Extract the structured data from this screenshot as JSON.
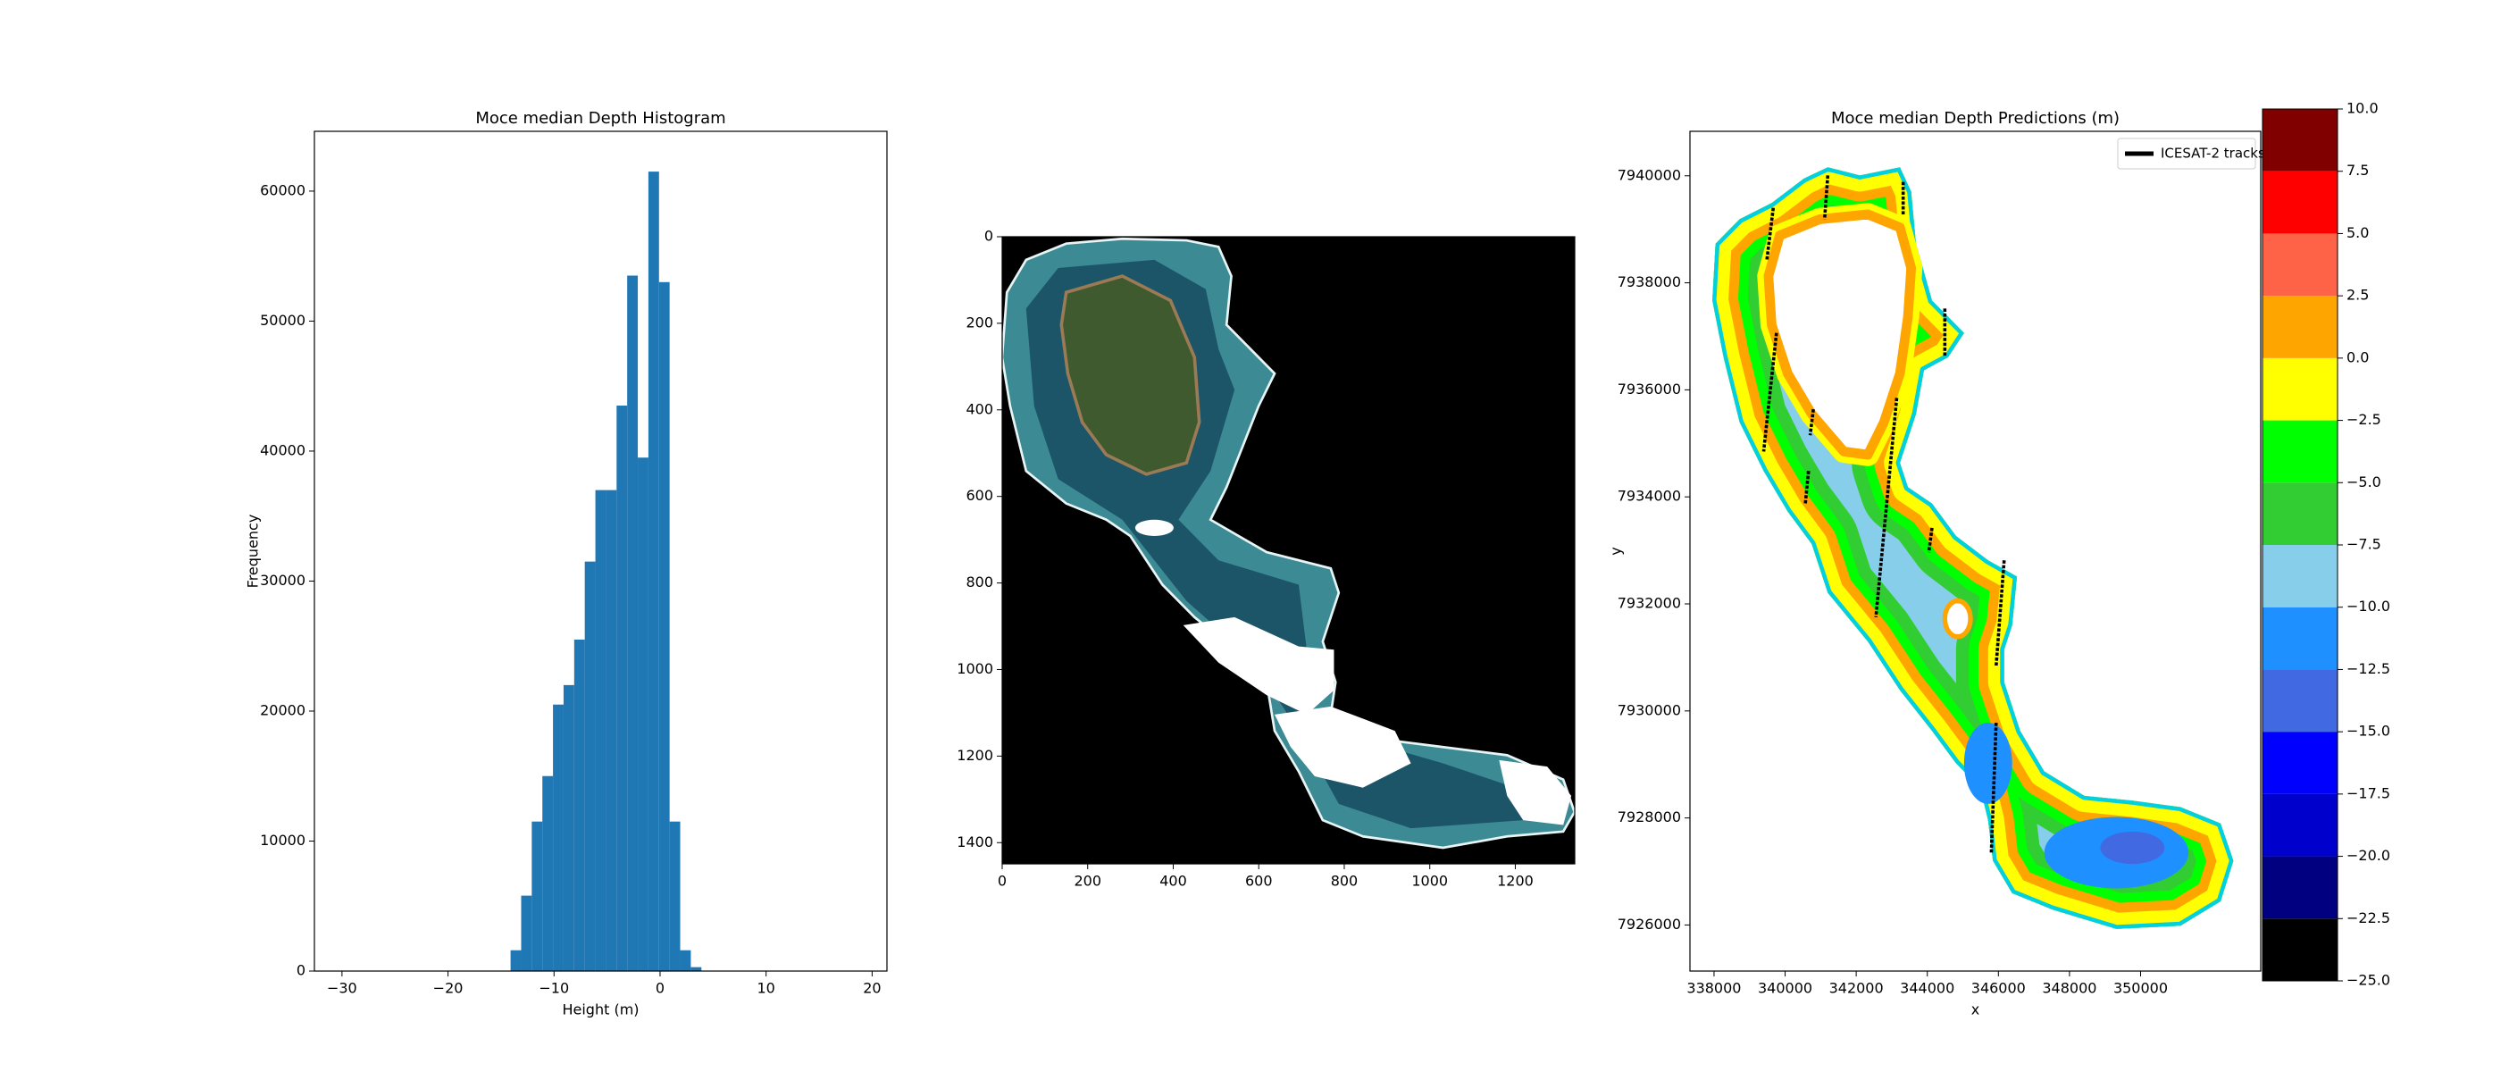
{
  "chart_data": [
    {
      "type": "histogram",
      "title": "Moce median Depth Histogram",
      "x_label": "Height (m)",
      "y_label": "Frequency",
      "color": "#1f77b4",
      "bins": [
        -14.1,
        -13.1,
        -12.1,
        -11.1,
        -10.1,
        -9.1,
        -8.1,
        -7.1,
        -6.1,
        -5.1,
        -4.1,
        -3.1,
        -2.1,
        -1.1,
        -0.1,
        0.9,
        1.9,
        2.9,
        3.9
      ],
      "values": [
        1600,
        5800,
        11500,
        15000,
        20500,
        22000,
        25500,
        31500,
        37000,
        37000,
        43500,
        53500,
        39500,
        61500,
        53000,
        11500,
        1600,
        300
      ],
      "xlim": [
        -32.6,
        21.4
      ],
      "xticks": [
        {
          "value": -30,
          "label": "−30"
        },
        {
          "value": -20,
          "label": "−20"
        },
        {
          "value": -10,
          "label": "−10"
        },
        0,
        10,
        20
      ],
      "ylim": [
        0,
        64600
      ],
      "yticks": [
        0,
        10000,
        20000,
        30000,
        40000,
        50000,
        60000
      ]
    },
    {
      "type": "image",
      "xlim": [
        0,
        1339
      ],
      "xticks": [
        0,
        200,
        400,
        600,
        800,
        1000,
        1200
      ],
      "ylim": [
        1449,
        0
      ],
      "yticks": [
        0,
        200,
        400,
        600,
        800,
        1000,
        1200,
        1400
      ]
    },
    {
      "type": "map",
      "title": "Moce median Depth Predictions (m)",
      "x_label": "x",
      "y_label": "y",
      "legend": "ICESAT-2 tracks",
      "legend_position": "upper right",
      "xlim": [
        337323,
        353380
      ],
      "xticks": [
        338000,
        340000,
        342000,
        344000,
        346000,
        348000,
        350000
      ],
      "ylim": [
        7925139,
        7940831
      ],
      "yticks": [
        7926000,
        7928000,
        7930000,
        7932000,
        7934000,
        7936000,
        7938000,
        7940000
      ],
      "colorbar": {
        "lim": [
          -25,
          10
        ],
        "ticks": [
          {
            "value": -25,
            "label": "−25.0"
          },
          {
            "value": -22.5,
            "label": "−22.5"
          },
          {
            "value": -20,
            "label": "−20.0"
          },
          {
            "value": -17.5,
            "label": "−17.5"
          },
          {
            "value": -15,
            "label": "−15.0"
          },
          {
            "value": -12.5,
            "label": "−12.5"
          },
          {
            "value": -10,
            "label": "−10.0"
          },
          {
            "value": -7.5,
            "label": "−7.5"
          },
          {
            "value": -5,
            "label": "−5.0"
          },
          {
            "value": -2.5,
            "label": "−2.5"
          },
          {
            "value": 0,
            "label": "0.0"
          },
          {
            "value": 2.5,
            "label": "2.5"
          },
          {
            "value": 5,
            "label": "5.0"
          },
          {
            "value": 7.5,
            "label": "7.5"
          },
          {
            "value": 10,
            "label": "10.0"
          }
        ],
        "colors": [
          "#000000",
          "#000080",
          "#0000cd",
          "#0000ff",
          "#4169e1",
          "#1e90ff",
          "#87ceeb",
          "#32cd32",
          "#00ff00",
          "#ffff00",
          "#ffa500",
          "#ff6347",
          "#ff0000",
          "#800000"
        ]
      }
    }
  ]
}
